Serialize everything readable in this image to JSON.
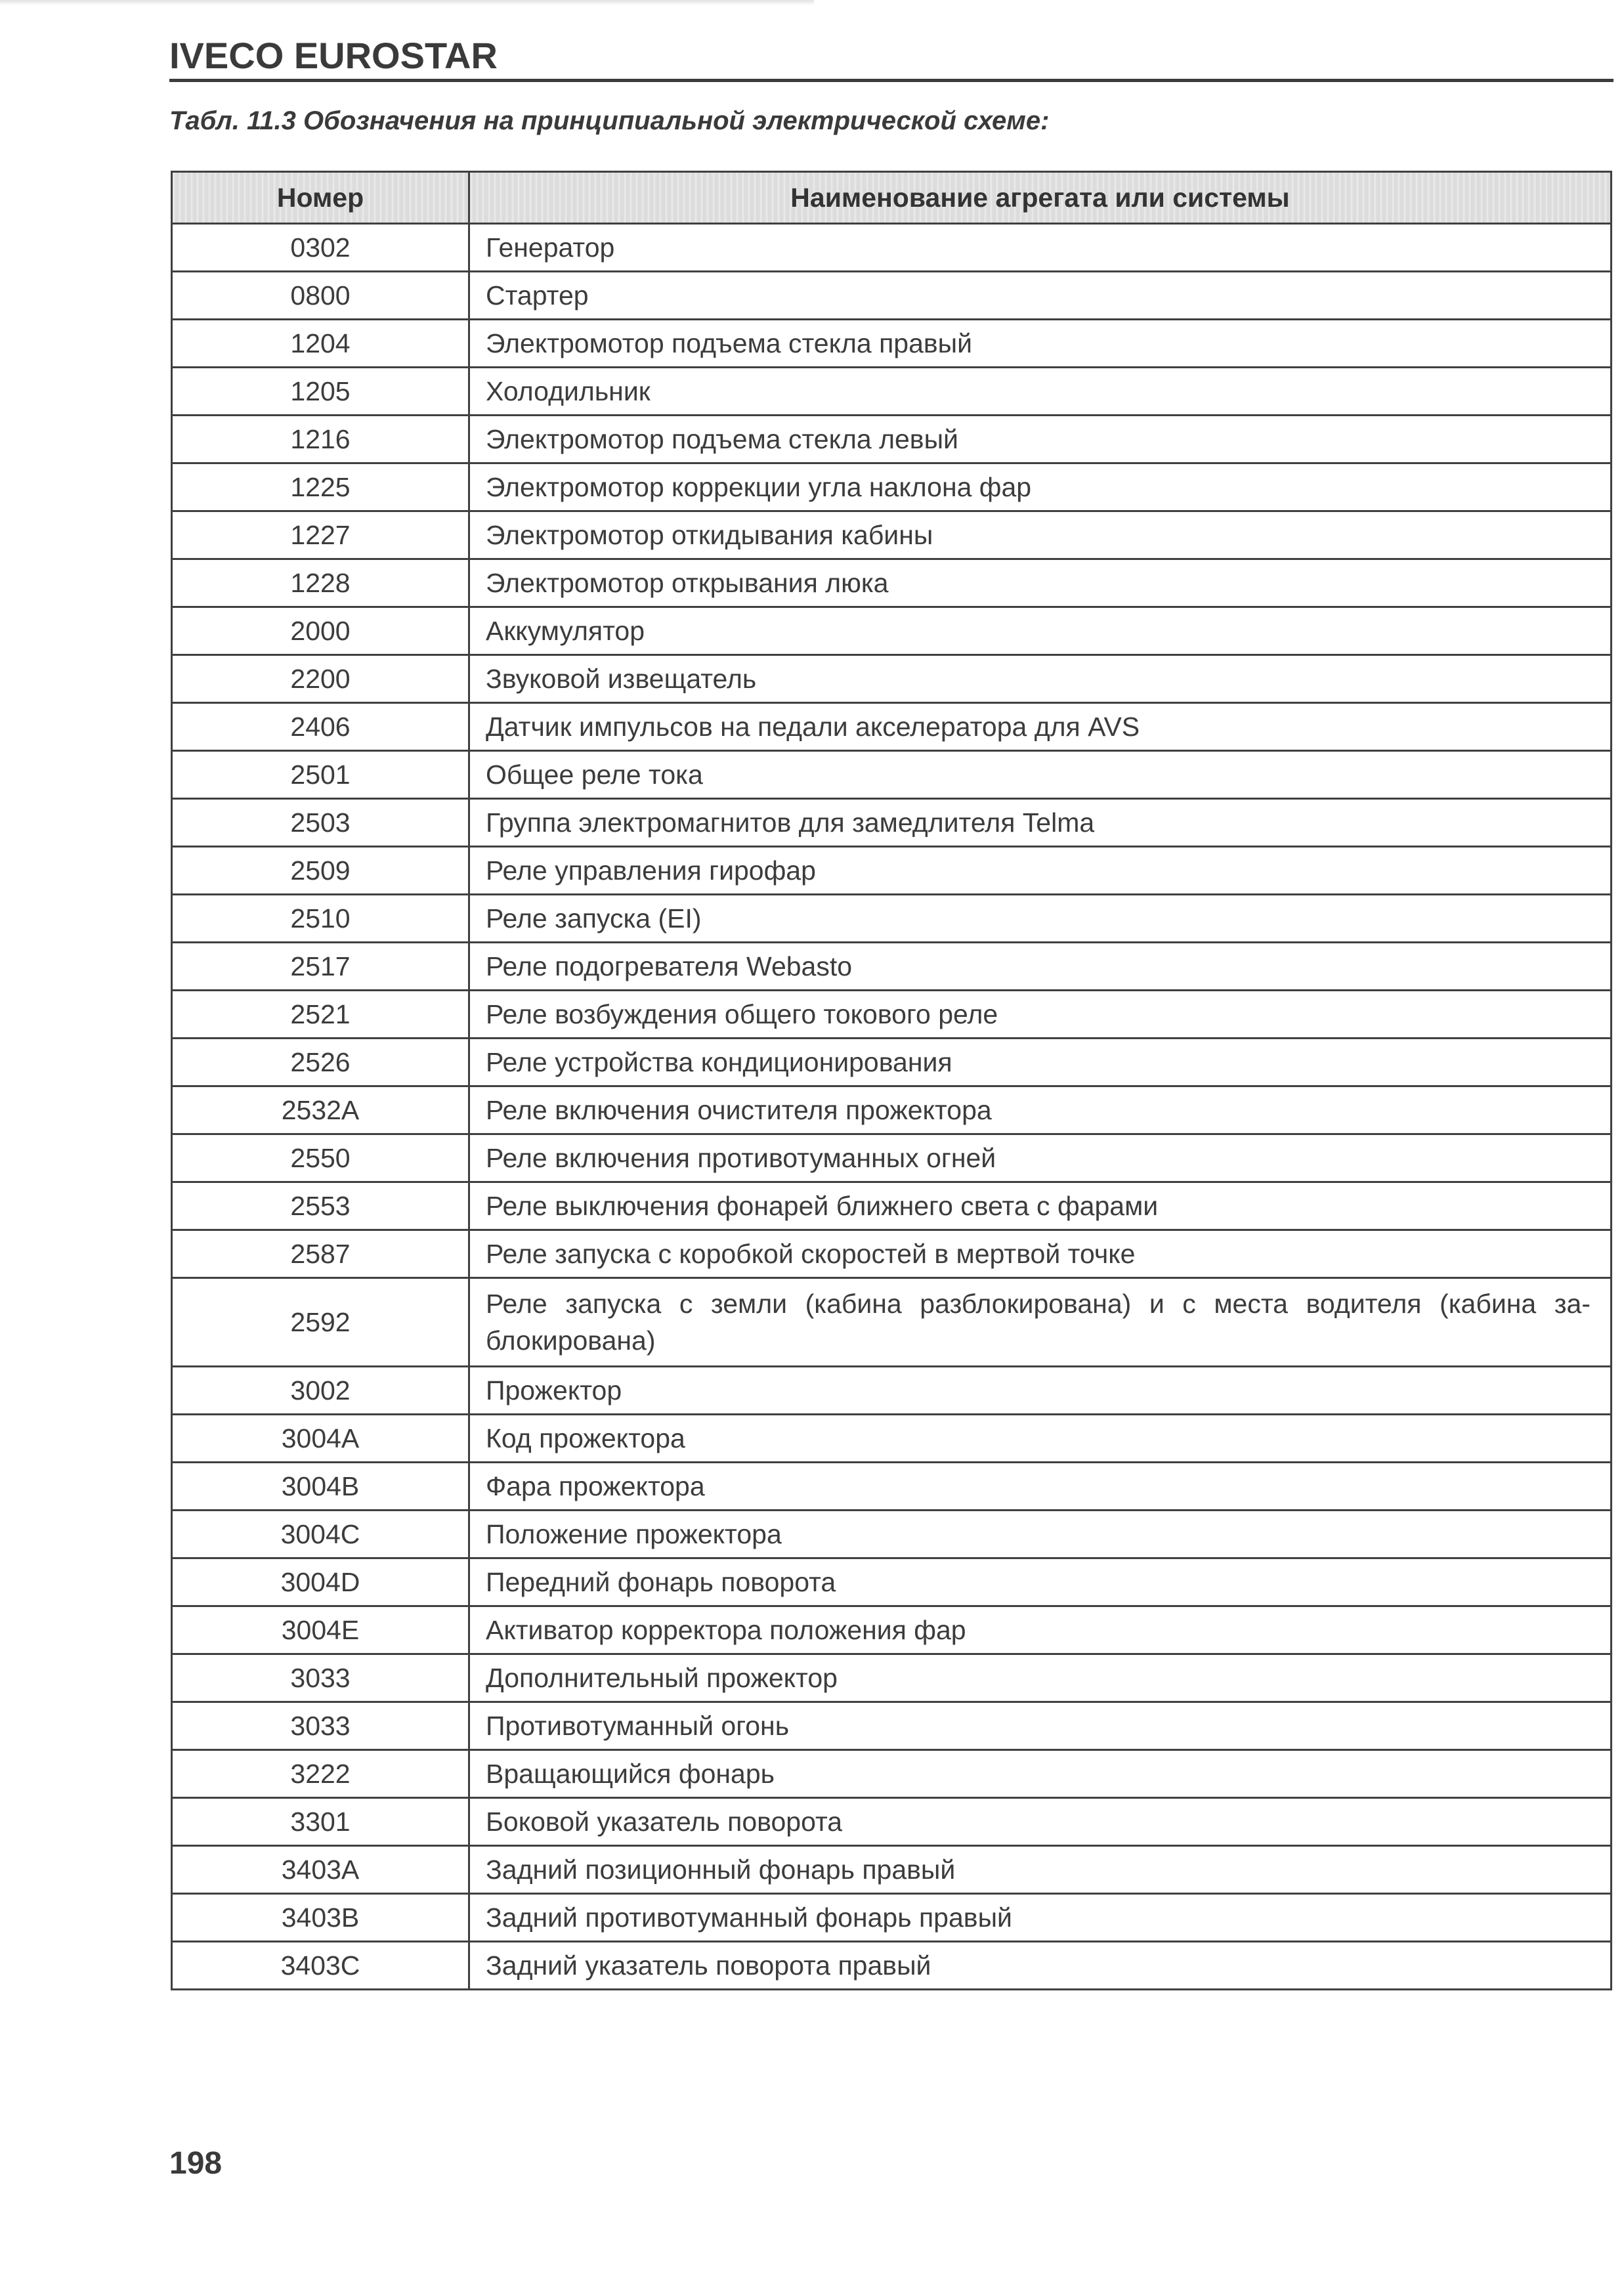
{
  "header": {
    "brand": "IVECO EUROSTAR"
  },
  "caption": "Табл. 11.3 Обозначения на принципиальной электрической схеме:",
  "table": {
    "columns": [
      "Номер",
      "Наименование агрегата или системы"
    ],
    "rows": [
      {
        "num": "0302",
        "name": "Генератор"
      },
      {
        "num": "0800",
        "name": "Стартер"
      },
      {
        "num": "1204",
        "name": "Электромотор подъема стекла правый"
      },
      {
        "num": "1205",
        "name": "Холодильник"
      },
      {
        "num": "1216",
        "name": "Электромотор подъема стекла левый"
      },
      {
        "num": "1225",
        "name": "Электромотор коррекции угла наклона фар"
      },
      {
        "num": "1227",
        "name": "Электромотор откидывания кабины"
      },
      {
        "num": "1228",
        "name": "Электромотор открывания люка"
      },
      {
        "num": "2000",
        "name": "Аккумулятор"
      },
      {
        "num": "2200",
        "name": "Звуковой извещатель"
      },
      {
        "num": "2406",
        "name": "Датчик импульсов на педали акселератора для AVS"
      },
      {
        "num": "2501",
        "name": "Общее реле тока"
      },
      {
        "num": "2503",
        "name": "Группа электромагнитов для замедлителя Telma"
      },
      {
        "num": "2509",
        "name": "Реле управления гирофар"
      },
      {
        "num": "2510",
        "name": "Реле запуска (EI)"
      },
      {
        "num": "2517",
        "name": "Реле подогревателя Webasto"
      },
      {
        "num": "2521",
        "name": "Реле возбуждения общего токового реле"
      },
      {
        "num": "2526",
        "name": "Реле устройства кондиционирования"
      },
      {
        "num": "2532A",
        "name": "Реле включения очистителя прожектора"
      },
      {
        "num": "2550",
        "name": "Реле включения противотуманных огней"
      },
      {
        "num": "2553",
        "name": "Реле выключения фонарей ближнего света с фарами"
      },
      {
        "num": "2587",
        "name": "Реле запуска с коробкой скоростей в мертвой точке"
      },
      {
        "num": "2592",
        "name": "Реле запуска с земли (кабина разблокирована) и с места водителя (кабина за-блокирована)"
      },
      {
        "num": "3002",
        "name": "Прожектор"
      },
      {
        "num": "3004A",
        "name": "Код прожектора"
      },
      {
        "num": "3004B",
        "name": "Фара прожектора"
      },
      {
        "num": "3004C",
        "name": "Положение прожектора"
      },
      {
        "num": "3004D",
        "name": "Передний фонарь поворота"
      },
      {
        "num": "3004E",
        "name": "Активатор корректора положения фар"
      },
      {
        "num": "3033",
        "name": "Дополнительный прожектор"
      },
      {
        "num": "3033",
        "name": "Противотуманный огонь"
      },
      {
        "num": "3222",
        "name": "Вращающийся фонарь"
      },
      {
        "num": "3301",
        "name": "Боковой указатель поворота"
      },
      {
        "num": "3403A",
        "name": "Задний позиционный фонарь правый"
      },
      {
        "num": "3403B",
        "name": "Задний противотуманный фонарь правый"
      },
      {
        "num": "3403C",
        "name": "Задний указатель поворота правый"
      }
    ]
  },
  "footer": {
    "page_number": "198"
  }
}
